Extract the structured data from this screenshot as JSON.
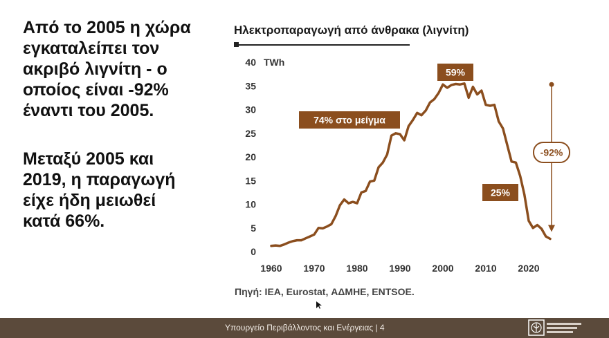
{
  "slide": {
    "lead_1": "Από το 2005 η χώρα\nεγκαταλείπει τον\nακριβό λιγνίτη - ο\nοποίος είναι -92%\nέναντι του 2005.",
    "lead_2": "Μεταξύ 2005 και\n2019, η παραγωγή\nείχε ήδη μειωθεί\nκατά 66%.",
    "source": "Πηγή: IEA, Eurostat, ΑΔΜΗΕ, ENTSOE.",
    "footer_text": "Υπουργείο Περιβάλλοντος και Ενέργειας | 4",
    "colors": {
      "line": "#8b4e1e",
      "footer": "#5b4a3b",
      "logo_green": "#3a7a3a"
    }
  },
  "chart_data": {
    "type": "line",
    "title": "Ηλεκτροπαραγωγή από άνθρακα (λιγνίτη)",
    "ylabel": "TWh",
    "xlim": [
      1960,
      2025
    ],
    "ylim": [
      0,
      40
    ],
    "x_ticks": [
      "1960",
      "1970",
      "1980",
      "1990",
      "2000",
      "2010",
      "2020"
    ],
    "y_ticks": [
      "0",
      "5",
      "10",
      "15",
      "20",
      "25",
      "30",
      "35",
      "40"
    ],
    "grid": false,
    "x": [
      1960,
      1961,
      1962,
      1963,
      1964,
      1965,
      1966,
      1967,
      1968,
      1969,
      1970,
      1971,
      1972,
      1973,
      1974,
      1975,
      1976,
      1977,
      1978,
      1979,
      1980,
      1981,
      1982,
      1983,
      1984,
      1985,
      1986,
      1987,
      1988,
      1989,
      1990,
      1991,
      1992,
      1993,
      1994,
      1995,
      1996,
      1997,
      1998,
      1999,
      2000,
      2001,
      2002,
      2003,
      2004,
      2005,
      2006,
      2007,
      2008,
      2009,
      2010,
      2011,
      2012,
      2013,
      2014,
      2015,
      2016,
      2017,
      2018,
      2019,
      2020,
      2021,
      2022,
      2023,
      2024,
      2025
    ],
    "values": [
      1.2,
      1.3,
      1.2,
      1.5,
      1.9,
      2.2,
      2.4,
      2.4,
      2.8,
      3.2,
      3.6,
      5.0,
      4.9,
      5.3,
      5.8,
      7.5,
      9.8,
      11.0,
      10.2,
      10.5,
      10.2,
      12.5,
      12.8,
      14.8,
      15.0,
      17.8,
      18.8,
      20.5,
      24.5,
      25.0,
      24.8,
      23.5,
      26.5,
      27.8,
      29.3,
      28.8,
      29.8,
      31.5,
      32.2,
      33.5,
      35.3,
      34.6,
      35.2,
      35.4,
      35.3,
      35.5,
      32.5,
      34.8,
      33.2,
      34.0,
      31.0,
      30.8,
      31.0,
      27.5,
      26.0,
      22.5,
      19.0,
      18.8,
      16.0,
      12.0,
      6.5,
      5.0,
      5.6,
      4.8,
      3.2,
      2.7
    ],
    "annotations": [
      {
        "text": "74% στο μείγμα",
        "x": 1989,
        "y": 25
      },
      {
        "text": "59%",
        "x": 2003,
        "y": 35.4
      },
      {
        "text": "25%",
        "x": 2019,
        "y": 12
      },
      {
        "text": "-92%",
        "x": 2005,
        "y": 35.5
      }
    ]
  }
}
